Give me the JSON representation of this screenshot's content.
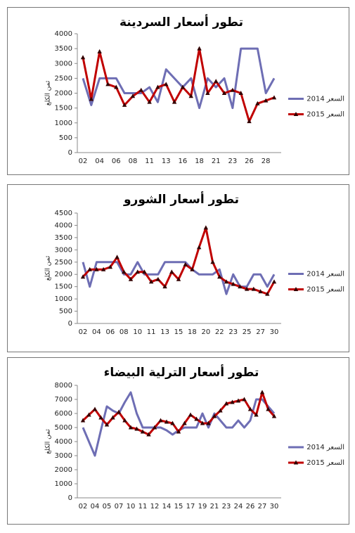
{
  "chart_data": [
    {
      "type": "line",
      "title": "تطور أسعار السردينة",
      "y_label": "ثمن الكلغ",
      "categories": [
        "02",
        null,
        "04",
        null,
        "06",
        null,
        "08",
        null,
        "11",
        null,
        "13",
        null,
        "16",
        null,
        "18",
        null,
        "21",
        null,
        "23",
        null,
        "26",
        null,
        "28",
        null
      ],
      "series": [
        {
          "name": "السعر 2014",
          "color": "#6e6eb4",
          "marker": "none",
          "values": [
            2500,
            1600,
            2500,
            2500,
            2500,
            2000,
            2000,
            2000,
            2200,
            1700,
            2800,
            2500,
            2200,
            2500,
            1500,
            2500,
            2200,
            2500,
            1500,
            3500,
            3500,
            3500,
            2000,
            2500
          ]
        },
        {
          "name": "السعر 2015",
          "color": "#c00000",
          "marker": "triangle",
          "values": [
            3200,
            1800,
            3400,
            2300,
            2200,
            1600,
            1900,
            2100,
            1700,
            2200,
            2300,
            1700,
            2200,
            1900,
            3500,
            2000,
            2400,
            2000,
            2100,
            2000,
            1050,
            1650,
            1750,
            1850
          ]
        }
      ],
      "ylim": [
        0,
        4000
      ],
      "yticks": [
        0,
        500,
        1000,
        1500,
        2000,
        2500,
        3000,
        3500,
        4000
      ],
      "legend": "right"
    },
    {
      "type": "line",
      "title": "تطور أسعار الشورو",
      "y_label": "ثمن الكلغ",
      "categories": [
        "02",
        null,
        "04",
        null,
        "06",
        null,
        "08",
        null,
        "10",
        null,
        "11",
        null,
        "13",
        null,
        "15",
        null,
        "18",
        null,
        "20",
        null,
        "22",
        null,
        "23",
        null,
        "25",
        null,
        "27",
        null,
        "30"
      ],
      "series": [
        {
          "name": "السعر 2014",
          "color": "#6e6eb4",
          "marker": "none",
          "values": [
            2500,
            1500,
            2500,
            2500,
            2500,
            2500,
            2000,
            2000,
            2500,
            2000,
            2000,
            2000,
            2500,
            2500,
            2500,
            2500,
            2200,
            2000,
            2000,
            2000,
            2200,
            1200,
            2000,
            1500,
            1500,
            2000,
            2000,
            1500,
            2000
          ]
        },
        {
          "name": "السعر 2015",
          "color": "#c00000",
          "marker": "triangle",
          "values": [
            1900,
            2200,
            2200,
            2200,
            2300,
            2700,
            2100,
            1800,
            2100,
            2100,
            1700,
            1800,
            1500,
            2100,
            1800,
            2400,
            2200,
            3100,
            3900,
            2500,
            1900,
            1700,
            1600,
            1500,
            1400,
            1400,
            1300,
            1200,
            1700
          ]
        }
      ],
      "ylim": [
        0,
        4500
      ],
      "yticks": [
        0,
        500,
        1000,
        1500,
        2000,
        2500,
        3000,
        3500,
        4000,
        4500
      ],
      "legend": "right"
    },
    {
      "type": "line",
      "title": "تطور أسعار الترلية البيضاء",
      "y_label": "ثمن الكلغ",
      "categories": [
        "02",
        null,
        "04",
        null,
        "05",
        null,
        "07",
        null,
        "10",
        null,
        "11",
        null,
        "12",
        null,
        "14",
        null,
        "15",
        null,
        "17",
        null,
        "19",
        null,
        "21",
        null,
        "23",
        null,
        "24",
        null,
        "26",
        null,
        "27",
        null,
        "30"
      ],
      "series": [
        {
          "name": "السعر 2014",
          "color": "#6e6eb4",
          "marker": "none",
          "values": [
            5000,
            4000,
            3000,
            4800,
            6500,
            6200,
            6000,
            6800,
            7500,
            6000,
            5000,
            5000,
            5000,
            5000,
            4800,
            4500,
            4800,
            5000,
            5000,
            5000,
            6000,
            5000,
            6000,
            5500,
            5000,
            5000,
            5500,
            5000,
            5500,
            7000,
            7000,
            6500,
            6000
          ]
        },
        {
          "name": "السعر 2015",
          "color": "#c00000",
          "marker": "triangle",
          "values": [
            5500,
            5900,
            6300,
            5700,
            5200,
            5700,
            6100,
            5500,
            5000,
            4900,
            4700,
            4500,
            5000,
            5500,
            5400,
            5300,
            4700,
            5300,
            5900,
            5600,
            5300,
            5300,
            5800,
            6200,
            6700,
            6800,
            6900,
            7000,
            6300,
            5900,
            7500,
            6300,
            5800
          ]
        }
      ],
      "ylim": [
        0,
        8000
      ],
      "yticks": [
        0,
        1000,
        2000,
        3000,
        4000,
        5000,
        6000,
        7000,
        8000
      ],
      "legend": "right"
    }
  ]
}
